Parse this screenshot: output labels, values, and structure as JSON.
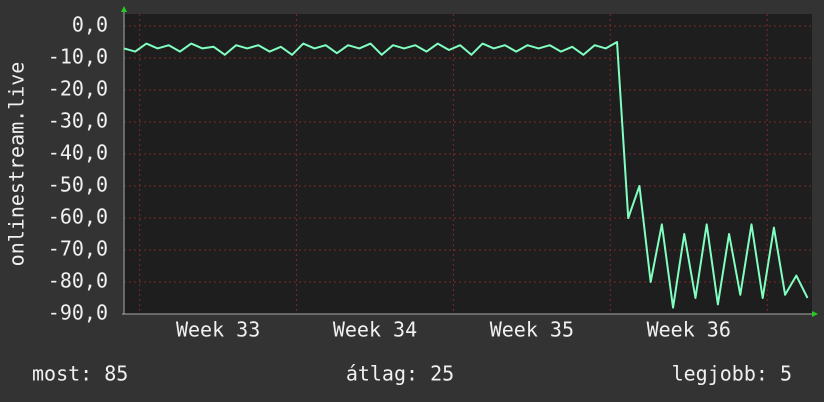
{
  "chart_data": {
    "type": "line",
    "y_label": "onlinestream.live",
    "x": [
      0,
      0.5,
      1,
      1.5,
      2,
      2.5,
      3,
      3.5,
      4,
      4.5,
      5,
      5.5,
      6,
      6.5,
      7,
      7.5,
      8,
      8.5,
      9,
      9.5,
      10,
      10.5,
      11,
      11.5,
      12,
      12.5,
      13,
      13.5,
      14,
      14.5,
      15,
      15.5,
      16,
      16.5,
      17,
      17.5,
      18,
      18.5,
      19,
      19.5,
      20,
      20.5,
      21,
      21.5,
      22,
      22.5,
      23,
      23.5,
      24,
      24.5,
      25,
      25.5,
      26,
      26.5,
      27,
      27.5,
      28,
      28.5,
      29,
      29.5,
      30,
      30.5
    ],
    "series": [
      {
        "name": "onlinestream.live",
        "color": "#80ffc0",
        "values": [
          -7,
          -8,
          -5.5,
          -7,
          -6,
          -8,
          -5.5,
          -7,
          -6.5,
          -9,
          -6,
          -7,
          -6,
          -8,
          -6.5,
          -9,
          -5.5,
          -7,
          -6,
          -8.5,
          -6,
          -7,
          -5.5,
          -9,
          -6,
          -7,
          -6,
          -8,
          -5.5,
          -7.5,
          -6,
          -9,
          -5.5,
          -7,
          -6,
          -8,
          -6,
          -7,
          -6,
          -8,
          -6.5,
          -9,
          -6,
          -7,
          -5,
          -60,
          -50,
          -80,
          -62,
          -88,
          -65,
          -85,
          -62,
          -87,
          -65,
          -84,
          -62,
          -85,
          -63,
          -84,
          -78,
          -85
        ]
      }
    ],
    "xlim": [
      0,
      30.7
    ],
    "xticks": [
      {
        "value": 4.2,
        "label": "Week 33"
      },
      {
        "value": 11.2,
        "label": "Week 34"
      },
      {
        "value": 18.2,
        "label": "Week 35"
      },
      {
        "value": 25.2,
        "label": "Week 36"
      }
    ],
    "xgrid": [
      0.7,
      7.7,
      14.7,
      21.7,
      28.7
    ],
    "ylim": [
      -90,
      3.75
    ],
    "yticks": [
      {
        "value": 0,
        "label": "0,0"
      },
      {
        "value": -10,
        "label": "-10,0"
      },
      {
        "value": -20,
        "label": "-20,0"
      },
      {
        "value": -30,
        "label": "-30,0"
      },
      {
        "value": -40,
        "label": "-40,0"
      },
      {
        "value": -50,
        "label": "-50,0"
      },
      {
        "value": -60,
        "label": "-60,0"
      },
      {
        "value": -70,
        "label": "-70,0"
      },
      {
        "value": -80,
        "label": "-80,0"
      },
      {
        "value": -90,
        "label": "-90,0"
      }
    ],
    "grid": true,
    "footer": [
      "most: 85",
      "átlag: 25",
      "legjobb: 5"
    ]
  }
}
